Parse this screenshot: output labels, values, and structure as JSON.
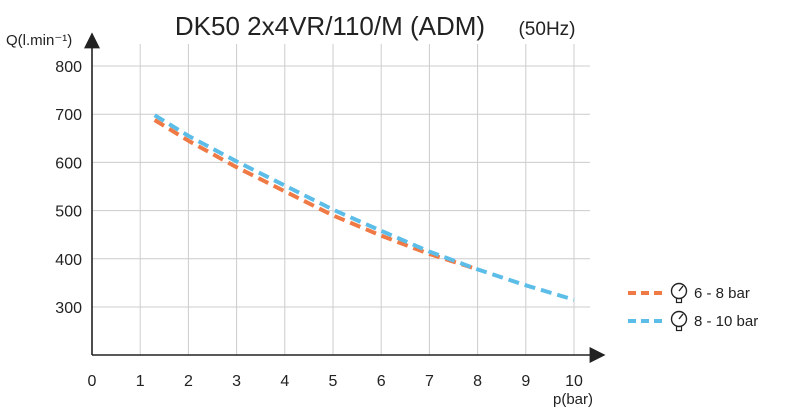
{
  "chart_data": {
    "type": "line",
    "title": "DK50 2x4VR/110/M (ADM)",
    "subtitle": "(50Hz)",
    "xlabel": "p(bar)",
    "ylabel": "Q(l.min⁻¹)",
    "xlim": [
      0,
      10
    ],
    "ylim": [
      200,
      800
    ],
    "x_ticks": [
      "0",
      "1",
      "2",
      "3",
      "4",
      "5",
      "6",
      "7",
      "8",
      "9",
      "10"
    ],
    "y_ticks": [
      "300",
      "400",
      "500",
      "600",
      "700",
      "800"
    ],
    "grid": true,
    "legend_position": "right",
    "series": [
      {
        "name": "6 - 8 bar",
        "color": "#f07a45",
        "x": [
          1.3,
          2,
          3,
          4,
          5,
          6,
          7,
          8
        ],
        "y": [
          688,
          645,
          590,
          540,
          490,
          448,
          410,
          378
        ]
      },
      {
        "name": "8 - 10 bar",
        "color": "#5bbde8",
        "x": [
          1.3,
          2,
          3,
          4,
          5,
          6,
          7,
          8,
          9,
          10
        ],
        "y": [
          698,
          655,
          602,
          552,
          502,
          458,
          415,
          378,
          345,
          315
        ]
      }
    ]
  }
}
